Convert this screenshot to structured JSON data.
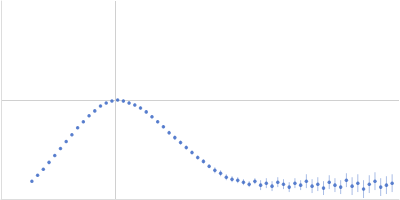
{
  "chart_data": {
    "type": "scatter",
    "color": "#3a66c4",
    "grid": true,
    "tick_labels": false,
    "marker": "circle",
    "xlim": [
      0,
      3.48
    ],
    "xticks": [
      1
    ],
    "ylim": [
      0,
      2
    ],
    "yticks": [
      1
    ],
    "x": [
      0.27,
      0.32,
      0.37,
      0.42,
      0.47,
      0.52,
      0.57,
      0.62,
      0.67,
      0.72,
      0.77,
      0.82,
      0.87,
      0.92,
      0.97,
      1.02,
      1.07,
      1.12,
      1.17,
      1.22,
      1.27,
      1.32,
      1.37,
      1.42,
      1.47,
      1.52,
      1.57,
      1.62,
      1.67,
      1.72,
      1.77,
      1.82,
      1.87,
      1.92,
      1.97,
      2.02,
      2.07,
      2.12,
      2.17,
      2.22,
      2.27,
      2.32,
      2.37,
      2.42,
      2.47,
      2.52,
      2.57,
      2.62,
      2.67,
      2.72,
      2.77,
      2.82,
      2.87,
      2.92,
      2.97,
      3.02,
      3.07,
      3.12,
      3.17,
      3.22,
      3.27,
      3.32,
      3.37,
      3.42
    ],
    "values": [
      0.18,
      0.24,
      0.3,
      0.37,
      0.44,
      0.51,
      0.58,
      0.65,
      0.72,
      0.78,
      0.84,
      0.89,
      0.94,
      0.97,
      0.99,
      1.0,
      0.99,
      0.97,
      0.95,
      0.92,
      0.88,
      0.83,
      0.78,
      0.73,
      0.67,
      0.62,
      0.57,
      0.52,
      0.47,
      0.42,
      0.38,
      0.33,
      0.29,
      0.26,
      0.22,
      0.2,
      0.19,
      0.17,
      0.15,
      0.18,
      0.14,
      0.16,
      0.13,
      0.17,
      0.15,
      0.12,
      0.16,
      0.14,
      0.18,
      0.13,
      0.15,
      0.11,
      0.17,
      0.14,
      0.12,
      0.19,
      0.13,
      0.16,
      0.1,
      0.15,
      0.18,
      0.12,
      0.14,
      0.16
    ],
    "errors": [
      0.01,
      0.01,
      0.01,
      0.01,
      0.01,
      0.01,
      0.01,
      0.01,
      0.01,
      0.01,
      0.01,
      0.01,
      0.01,
      0.01,
      0.01,
      0.01,
      0.015,
      0.015,
      0.015,
      0.015,
      0.015,
      0.015,
      0.015,
      0.015,
      0.02,
      0.02,
      0.02,
      0.02,
      0.02,
      0.02,
      0.02,
      0.02,
      0.03,
      0.03,
      0.03,
      0.03,
      0.03,
      0.03,
      0.03,
      0.03,
      0.05,
      0.05,
      0.05,
      0.05,
      0.05,
      0.05,
      0.05,
      0.05,
      0.07,
      0.07,
      0.07,
      0.07,
      0.07,
      0.07,
      0.07,
      0.07,
      0.09,
      0.09,
      0.09,
      0.09,
      0.09,
      0.09,
      0.09,
      0.09
    ]
  }
}
